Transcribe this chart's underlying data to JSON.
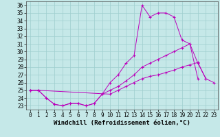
{
  "xlabel": "Windchill (Refroidissement éolien,°C)",
  "background_color": "#c5e8e8",
  "line_color": "#bb00bb",
  "grid_color": "#9ecece",
  "x": [
    0,
    1,
    2,
    3,
    4,
    5,
    6,
    7,
    8,
    9,
    10,
    11,
    12,
    13,
    14,
    15,
    16,
    17,
    18,
    19,
    20,
    21,
    22,
    23
  ],
  "curve1": [
    25.0,
    25.0,
    24.0,
    23.2,
    23.0,
    23.3,
    23.3,
    23.0,
    23.3,
    24.5,
    26.0,
    27.0,
    28.5,
    29.5,
    36.0,
    34.5,
    35.0,
    35.0,
    34.5,
    31.5,
    31.0,
    28.5,
    26.5,
    null
  ],
  "curve2": [
    25.0,
    25.0,
    24.0,
    23.2,
    23.0,
    23.3,
    23.3,
    23.0,
    23.3,
    24.5,
    25.0,
    25.5,
    26.2,
    27.0,
    28.0,
    28.5,
    29.0,
    29.5,
    30.0,
    30.5,
    31.0,
    26.5,
    null,
    null
  ],
  "curve3": [
    25.0,
    25.0,
    null,
    null,
    null,
    null,
    null,
    null,
    null,
    null,
    24.5,
    25.0,
    25.5,
    26.0,
    26.5,
    26.8,
    27.0,
    27.3,
    27.6,
    28.0,
    28.3,
    28.6,
    26.5,
    26.0
  ],
  "xlim": [
    -0.5,
    23.5
  ],
  "ylim": [
    22.5,
    36.5
  ],
  "yticks": [
    23,
    24,
    25,
    26,
    27,
    28,
    29,
    30,
    31,
    32,
    33,
    34,
    35,
    36
  ],
  "xticks": [
    0,
    1,
    2,
    3,
    4,
    5,
    6,
    7,
    8,
    9,
    10,
    11,
    12,
    13,
    14,
    15,
    16,
    17,
    18,
    19,
    20,
    21,
    22,
    23
  ],
  "xlabel_fontsize": 6.5,
  "tick_fontsize": 5.5
}
